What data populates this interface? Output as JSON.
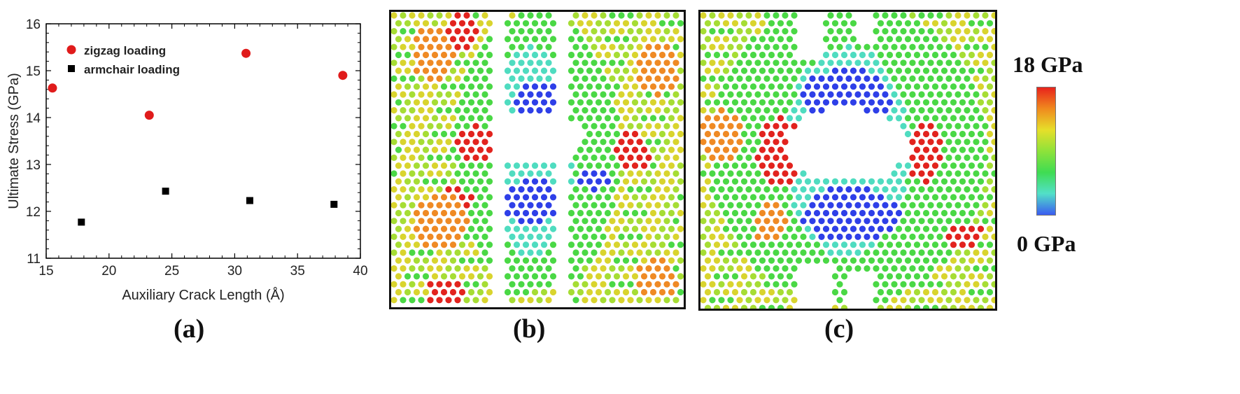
{
  "chart_data": {
    "type": "scatter",
    "title": "",
    "xlabel": "Auxiliary Crack Length (Å)",
    "ylabel": "Ultimate Stress (GPa)",
    "xlim": [
      15,
      40
    ],
    "ylim": [
      11,
      16
    ],
    "xticks": [
      15,
      20,
      25,
      30,
      35,
      40
    ],
    "yticks": [
      11,
      12,
      13,
      14,
      15,
      16
    ],
    "grid": false,
    "legend_position": "top-left",
    "series": [
      {
        "name": "zigzag loading",
        "marker": "circle",
        "color": "#e01b1b",
        "points": [
          {
            "x": 15.5,
            "y": 14.63
          },
          {
            "x": 23.2,
            "y": 14.05
          },
          {
            "x": 30.9,
            "y": 15.37
          },
          {
            "x": 38.6,
            "y": 14.9
          }
        ]
      },
      {
        "name": "armchair loading",
        "marker": "square",
        "color": "#000000",
        "points": [
          {
            "x": 17.8,
            "y": 11.77
          },
          {
            "x": 24.5,
            "y": 12.43
          },
          {
            "x": 31.2,
            "y": 12.23
          },
          {
            "x": 37.9,
            "y": 12.15
          }
        ]
      }
    ]
  },
  "panels": {
    "a": "(a)",
    "b": "(b)",
    "c": "(c)"
  },
  "colorbar": {
    "max_label": "18 GPa",
    "min_label": "0 GPa",
    "colors": [
      "#e8231c",
      "#f08a1e",
      "#e6df2a",
      "#8ee23a",
      "#3fdc52",
      "#52e0c8",
      "#3a5cf0"
    ]
  },
  "atom_colors": {
    "red": "#e2231e",
    "orange": "#ef8a24",
    "yellow": "#d9d42e",
    "lime": "#a6dd34",
    "green": "#4ad845",
    "cyan": "#4fdcc0",
    "blue": "#2e3fe8"
  }
}
